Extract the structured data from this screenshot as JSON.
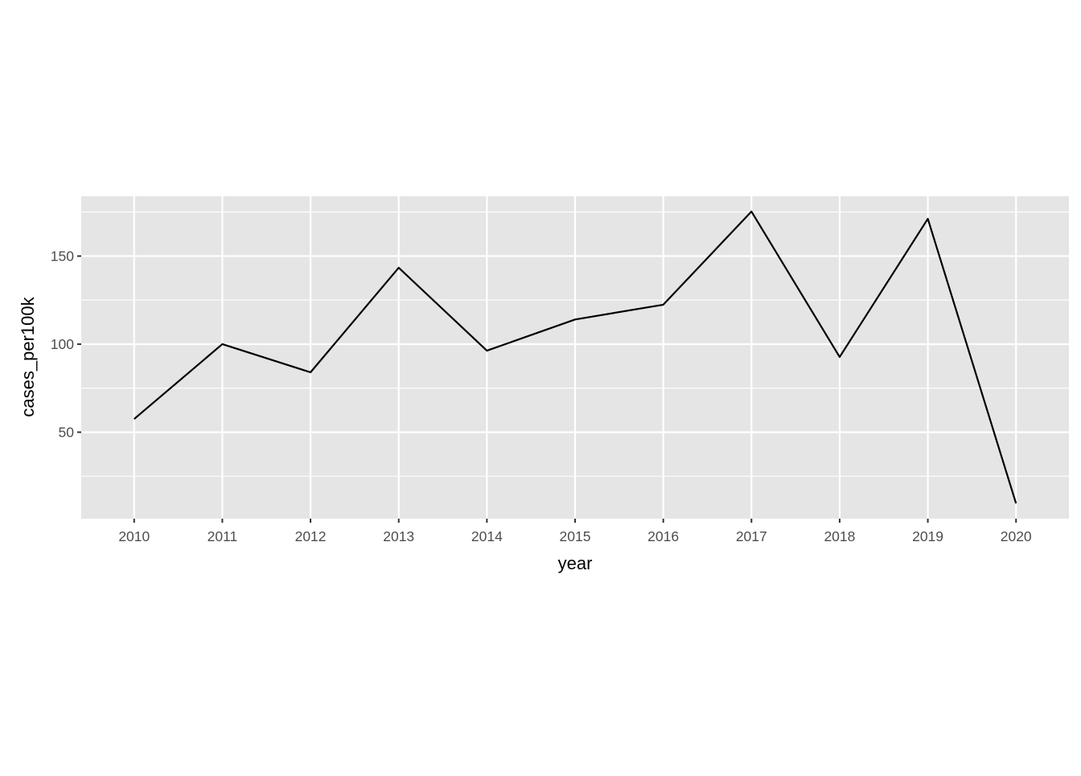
{
  "chart_data": {
    "type": "line",
    "title": "",
    "xlabel": "year",
    "ylabel": "cases_per100k",
    "x": [
      2010,
      2011,
      2012,
      2013,
      2014,
      2015,
      2016,
      2017,
      2018,
      2019,
      2020
    ],
    "series": [
      {
        "values": [
          57.5,
          100,
          84,
          143.4,
          96.3,
          114,
          122.4,
          175.3,
          92.7,
          171.2,
          9.6
        ]
      }
    ],
    "xticks": [
      "2010",
      "2011",
      "2012",
      "2013",
      "2014",
      "2015",
      "2016",
      "2017",
      "2018",
      "2019",
      "2020"
    ],
    "yticks": [
      50,
      100,
      150
    ],
    "ylim": [
      0.9,
      184
    ],
    "xlim": [
      2009.4,
      2020.6
    ],
    "grid": true,
    "legend": "none",
    "colors": {
      "panel": "#e5e5e5",
      "grid": "#ffffff",
      "line": "#000000",
      "tick_text": "#4d4d4d"
    }
  }
}
